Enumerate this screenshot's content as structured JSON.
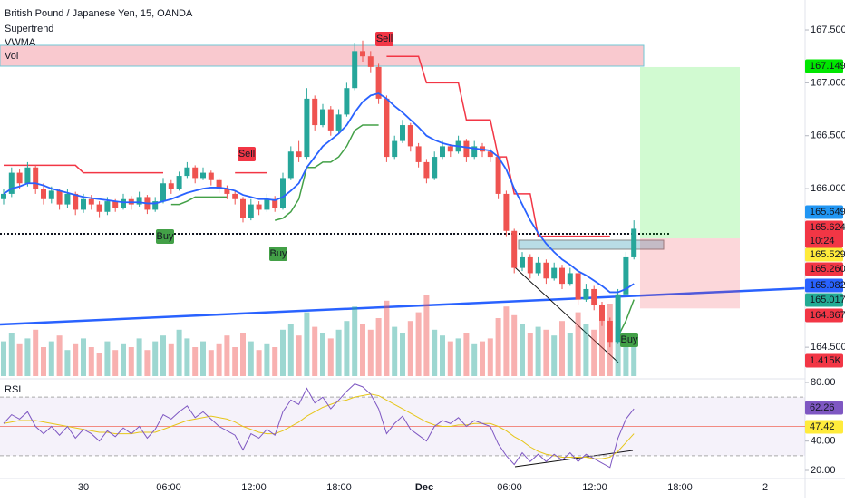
{
  "chart_data": {
    "type": "candlestick",
    "title": "British Pound / Japanese Yen, 15, OANDA",
    "indicators": [
      "Supertrend",
      "VWMA",
      "Vol"
    ],
    "ylim": [
      164.227,
      167.783
    ],
    "yticks": [
      {
        "value": 167.5,
        "label": "167.500"
      },
      {
        "value": 167,
        "label": "167.000"
      },
      {
        "value": 166.5,
        "label": "166.500"
      },
      {
        "value": 166,
        "label": "166.000"
      },
      {
        "value": 164.5,
        "label": "164.500"
      }
    ],
    "time_labels": [
      "30",
      "06:00",
      "12:00",
      "18:00",
      "Dec",
      "06:00",
      "12:00",
      "18:00",
      "2"
    ],
    "candles": [
      [
        165.9,
        166.0,
        165.85,
        165.95
      ],
      [
        165.95,
        166.2,
        165.92,
        166.15
      ],
      [
        166.15,
        166.18,
        166.0,
        166.05
      ],
      [
        166.05,
        166.25,
        166.02,
        166.2
      ],
      [
        166.2,
        166.22,
        165.95,
        166.0
      ],
      [
        166.0,
        166.05,
        165.85,
        165.9
      ],
      [
        165.9,
        166.02,
        165.86,
        165.98
      ],
      [
        165.98,
        166.0,
        165.8,
        165.85
      ],
      [
        165.85,
        166.0,
        165.82,
        165.95
      ],
      [
        165.95,
        165.97,
        165.75,
        165.8
      ],
      [
        165.8,
        165.95,
        165.77,
        165.9
      ],
      [
        165.9,
        165.94,
        165.8,
        165.85
      ],
      [
        165.85,
        165.88,
        165.73,
        165.78
      ],
      [
        165.78,
        165.92,
        165.75,
        165.88
      ],
      [
        165.88,
        165.9,
        165.78,
        165.82
      ],
      [
        165.82,
        165.95,
        165.8,
        165.9
      ],
      [
        165.9,
        165.93,
        165.8,
        165.85
      ],
      [
        165.85,
        165.97,
        165.83,
        165.92
      ],
      [
        165.92,
        165.94,
        165.76,
        165.8
      ],
      [
        165.8,
        165.92,
        165.78,
        165.88
      ],
      [
        165.88,
        166.1,
        165.86,
        166.05
      ],
      [
        166.05,
        166.08,
        165.95,
        166.0
      ],
      [
        166.0,
        166.16,
        165.98,
        166.12
      ],
      [
        166.12,
        166.25,
        166.1,
        166.2
      ],
      [
        166.2,
        166.22,
        166.05,
        166.1
      ],
      [
        166.1,
        166.2,
        166.08,
        166.15
      ],
      [
        166.15,
        166.17,
        166.03,
        166.08
      ],
      [
        166.08,
        166.1,
        165.96,
        166.0
      ],
      [
        166.0,
        166.03,
        165.9,
        165.95
      ],
      [
        165.95,
        165.98,
        165.85,
        165.9
      ],
      [
        165.9,
        165.92,
        165.68,
        165.72
      ],
      [
        165.72,
        165.9,
        165.7,
        165.85
      ],
      [
        165.85,
        165.88,
        165.75,
        165.8
      ],
      [
        165.8,
        165.95,
        165.78,
        165.9
      ],
      [
        165.9,
        165.93,
        165.78,
        165.82
      ],
      [
        165.82,
        166.15,
        165.8,
        166.1
      ],
      [
        166.1,
        166.4,
        166.08,
        166.35
      ],
      [
        166.35,
        166.45,
        166.25,
        166.3
      ],
      [
        166.3,
        166.95,
        166.28,
        166.85
      ],
      [
        166.85,
        166.88,
        166.55,
        166.6
      ],
      [
        166.6,
        166.8,
        166.58,
        166.75
      ],
      [
        166.75,
        166.78,
        166.5,
        166.55
      ],
      [
        166.55,
        166.75,
        166.52,
        166.7
      ],
      [
        166.7,
        167.0,
        166.68,
        166.95
      ],
      [
        166.95,
        167.38,
        166.93,
        167.3
      ],
      [
        167.3,
        167.4,
        167.2,
        167.25
      ],
      [
        167.25,
        167.3,
        167.1,
        167.15
      ],
      [
        167.15,
        167.18,
        166.8,
        166.85
      ],
      [
        166.85,
        166.88,
        166.25,
        166.3
      ],
      [
        166.3,
        166.5,
        166.28,
        166.45
      ],
      [
        166.45,
        166.65,
        166.43,
        166.6
      ],
      [
        166.6,
        166.62,
        166.35,
        166.4
      ],
      [
        166.4,
        166.43,
        166.2,
        166.25
      ],
      [
        166.25,
        166.28,
        166.05,
        166.1
      ],
      [
        166.1,
        166.35,
        166.08,
        166.3
      ],
      [
        166.3,
        166.45,
        166.28,
        166.4
      ],
      [
        166.4,
        166.42,
        166.3,
        166.35
      ],
      [
        166.35,
        166.5,
        166.33,
        166.45
      ],
      [
        166.45,
        166.47,
        166.25,
        166.3
      ],
      [
        166.3,
        166.45,
        166.28,
        166.4
      ],
      [
        166.4,
        166.43,
        166.3,
        166.35
      ],
      [
        166.35,
        166.38,
        166.25,
        166.3
      ],
      [
        166.3,
        166.32,
        165.9,
        165.95
      ],
      [
        165.95,
        165.98,
        165.55,
        165.6
      ],
      [
        165.6,
        165.62,
        165.2,
        165.25
      ],
      [
        165.25,
        165.4,
        165.22,
        165.35
      ],
      [
        165.35,
        165.38,
        165.15,
        165.2
      ],
      [
        165.2,
        165.35,
        165.18,
        165.3
      ],
      [
        165.3,
        165.33,
        165.1,
        165.15
      ],
      [
        165.15,
        165.3,
        165.13,
        165.25
      ],
      [
        165.25,
        165.28,
        165.05,
        165.1
      ],
      [
        165.1,
        165.25,
        165.08,
        165.2
      ],
      [
        165.2,
        165.22,
        164.9,
        164.95
      ],
      [
        164.95,
        165.1,
        164.93,
        165.05
      ],
      [
        165.05,
        165.08,
        164.85,
        164.9
      ],
      [
        164.9,
        164.93,
        164.7,
        164.75
      ],
      [
        164.75,
        164.78,
        164.5,
        164.55
      ],
      [
        164.55,
        165.05,
        164.53,
        165.0
      ],
      [
        165.0,
        165.4,
        164.98,
        165.35
      ],
      [
        165.35,
        165.7,
        165.33,
        165.62
      ]
    ],
    "up_color": "#26a69a",
    "down_color": "#ef5350",
    "vwma": {
      "color": "#2962ff",
      "values": [
        165.95,
        166.0,
        166.02,
        166.05,
        166.05,
        166.03,
        166.0,
        165.98,
        165.96,
        165.94,
        165.92,
        165.91,
        165.9,
        165.89,
        165.88,
        165.87,
        165.87,
        165.87,
        165.86,
        165.86,
        165.88,
        165.9,
        165.93,
        165.96,
        165.98,
        166.0,
        166.01,
        166.01,
        166.0,
        165.98,
        165.94,
        165.92,
        165.9,
        165.9,
        165.89,
        165.92,
        165.98,
        166.05,
        166.2,
        166.3,
        166.4,
        166.46,
        166.52,
        166.6,
        166.72,
        166.82,
        166.88,
        166.9,
        166.85,
        166.78,
        166.72,
        166.65,
        166.58,
        166.5,
        166.46,
        166.43,
        166.41,
        166.4,
        166.39,
        166.38,
        166.37,
        166.36,
        166.3,
        166.18,
        166.0,
        165.85,
        165.7,
        165.58,
        165.48,
        165.4,
        165.33,
        165.28,
        165.22,
        165.18,
        165.13,
        165.08,
        165.02,
        165.02,
        165.05,
        165.1
      ]
    },
    "supertrend_up": {
      "color": "#43a047",
      "values": [
        null,
        null,
        null,
        null,
        null,
        null,
        null,
        null,
        null,
        null,
        null,
        null,
        null,
        null,
        null,
        null,
        null,
        null,
        null,
        null,
        null,
        165.85,
        165.85,
        165.88,
        165.92,
        165.92,
        165.92,
        165.92,
        165.92,
        null,
        null,
        null,
        null,
        null,
        165.7,
        165.72,
        165.78,
        165.9,
        166.2,
        166.2,
        166.25,
        166.25,
        166.3,
        166.4,
        166.55,
        166.6,
        166.6,
        166.6,
        null,
        null,
        null,
        null,
        null,
        null,
        null,
        null,
        null,
        null,
        null,
        null,
        null,
        null,
        null,
        null,
        null,
        null,
        null,
        null,
        null,
        null,
        null,
        null,
        null,
        null,
        null,
        null,
        null,
        164.6,
        164.75,
        164.95
      ]
    },
    "supertrend_down": {
      "color": "#f23645",
      "values": [
        166.22,
        166.22,
        166.22,
        166.22,
        166.22,
        166.22,
        166.22,
        166.22,
        166.22,
        166.22,
        166.15,
        166.15,
        166.15,
        166.15,
        166.15,
        166.15,
        166.15,
        166.15,
        166.15,
        166.15,
        166.15,
        null,
        null,
        null,
        null,
        null,
        null,
        null,
        null,
        166.15,
        166.15,
        166.15,
        166.15,
        166.15,
        null,
        null,
        null,
        null,
        null,
        null,
        null,
        null,
        null,
        null,
        null,
        null,
        null,
        null,
        167.25,
        167.25,
        167.25,
        167.25,
        167.25,
        167.0,
        167.0,
        167.0,
        167.0,
        167.0,
        166.65,
        166.65,
        166.65,
        166.65,
        166.3,
        166.3,
        165.95,
        165.95,
        165.95,
        165.55,
        165.55,
        165.55,
        165.55,
        165.55,
        165.55,
        165.55,
        165.55,
        165.55,
        165.55,
        null,
        null,
        null
      ]
    },
    "volumes": [
      1.2,
      1.5,
      1.1,
      1.3,
      1.6,
      1.0,
      1.2,
      1.4,
      0.9,
      1.1,
      1.3,
      1.0,
      0.8,
      1.2,
      0.9,
      1.1,
      1.0,
      1.3,
      0.9,
      1.2,
      1.4,
      1.1,
      1.6,
      1.3,
      1.0,
      1.2,
      0.9,
      1.1,
      1.4,
      1.0,
      1.5,
      1.2,
      0.9,
      1.1,
      1.0,
      1.6,
      1.8,
      1.4,
      2.2,
      1.7,
      1.5,
      1.3,
      1.6,
      1.9,
      2.4,
      1.8,
      1.6,
      2.0,
      2.6,
      1.7,
      1.5,
      1.9,
      2.2,
      2.8,
      1.6,
      1.4,
      1.2,
      1.3,
      1.5,
      1.1,
      1.2,
      1.3,
      2.0,
      2.4,
      2.1,
      1.8,
      1.5,
      1.7,
      1.6,
      1.4,
      1.9,
      1.5,
      2.2,
      1.8,
      1.6,
      2.0,
      2.5,
      1.7,
      1.5,
      1.415
    ],
    "signals": [
      "Buy",
      "Sell",
      "Buy",
      "Sell",
      "Buy"
    ],
    "price_tags": [
      {
        "value": 167.149,
        "color": "#00e600"
      },
      {
        "value": 165.649,
        "color": "#2196f3"
      },
      {
        "value": 165.624,
        "color": "#f23645",
        "countdown": "10:24"
      },
      {
        "value": 165.529,
        "color": "#ffeb3b"
      },
      {
        "value": 165.26,
        "label": "165.260",
        "color": "#f23645"
      },
      {
        "value": 165.082,
        "color": "#2962ff"
      },
      {
        "value": 165.017,
        "color": "#22ab94"
      },
      {
        "value": 164.867,
        "color": "#f23645"
      },
      {
        "value": 1.415,
        "label": "1.415K",
        "color": "#f23645"
      }
    ],
    "rsi": {
      "title": "RSI",
      "color": "#7e57c2",
      "ylim": [
        15.05,
        81.24
      ],
      "yticks": [
        {
          "value": 80,
          "label": "80.00"
        },
        {
          "value": 40,
          "label": "40.00"
        },
        {
          "value": 20,
          "label": "20.00"
        }
      ],
      "values": [
        52,
        58,
        55,
        60,
        50,
        45,
        50,
        44,
        50,
        42,
        48,
        45,
        40,
        47,
        43,
        49,
        45,
        50,
        42,
        48,
        58,
        55,
        60,
        64,
        56,
        60,
        55,
        50,
        47,
        44,
        34,
        45,
        42,
        48,
        44,
        60,
        68,
        65,
        76,
        66,
        70,
        62,
        68,
        74,
        79,
        77,
        72,
        62,
        45,
        52,
        57,
        48,
        44,
        40,
        50,
        54,
        52,
        56,
        50,
        54,
        52,
        50,
        38,
        30,
        24,
        32,
        26,
        31,
        26,
        31,
        27,
        32,
        26,
        31,
        28,
        25,
        22,
        42,
        55,
        62
      ],
      "ma": {
        "color": "#e6c619",
        "values": [
          52,
          53,
          54,
          54,
          54,
          53,
          52,
          51,
          50,
          49,
          48,
          47,
          46,
          46,
          45,
          45,
          45,
          46,
          46,
          46,
          48,
          50,
          52,
          54,
          55,
          56,
          57,
          56,
          55,
          53,
          50,
          48,
          46,
          45,
          45,
          47,
          50,
          53,
          57,
          60,
          63,
          65,
          67,
          68,
          70,
          71,
          72,
          71,
          68,
          65,
          62,
          59,
          56,
          53,
          51,
          50,
          50,
          51,
          51,
          52,
          52,
          52,
          50,
          47,
          43,
          40,
          36,
          33,
          31,
          30,
          29,
          29,
          29,
          29,
          28,
          28,
          29,
          33,
          39,
          45
        ]
      },
      "tags": [
        {
          "value": 62.26,
          "color": "#7e57c2"
        },
        {
          "value": 47.42,
          "color": "#ffeb3b"
        }
      ]
    }
  }
}
